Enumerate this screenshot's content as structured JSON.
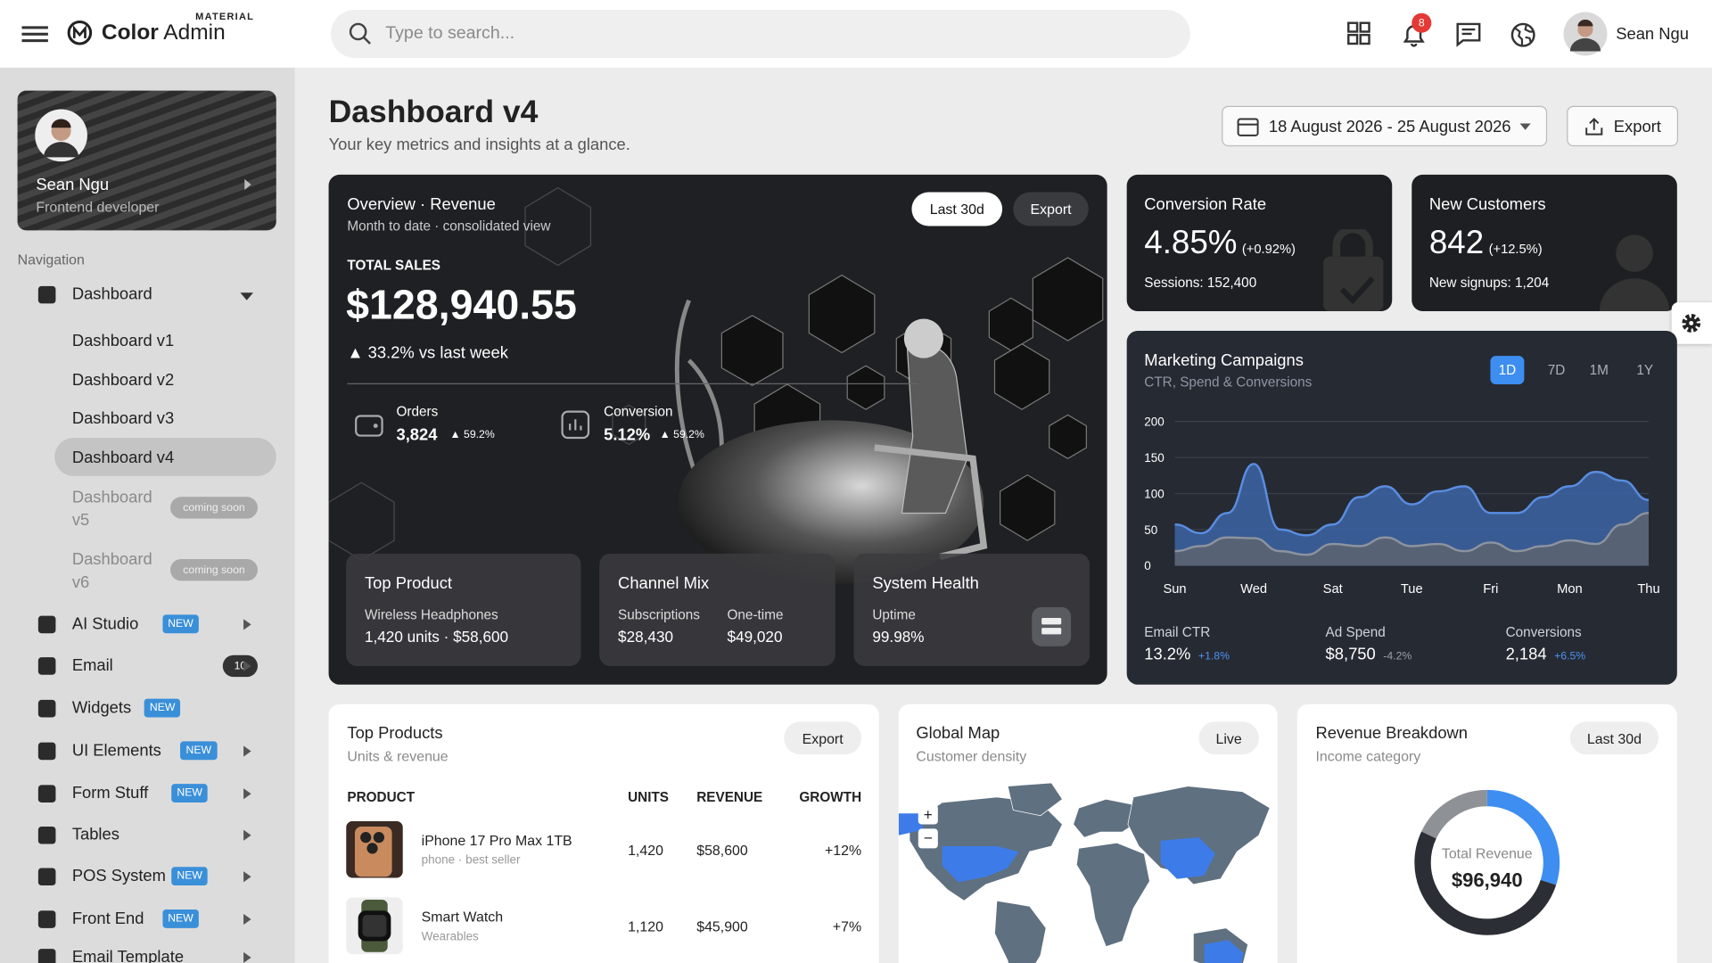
{
  "header": {
    "brand_tag": "MATERIAL",
    "brand": "Color",
    "brand_suffix": "Admin",
    "search_placeholder": "Type to search...",
    "notifications": "8",
    "user": "Sean Ngu"
  },
  "sidebar": {
    "profile": {
      "name": "Sean Ngu",
      "role": "Frontend developer"
    },
    "nav_label": "Navigation",
    "menu": [
      {
        "label": "Dashboard",
        "children": [
          {
            "label": "Dashboard v1"
          },
          {
            "label": "Dashboard v2"
          },
          {
            "label": "Dashboard v3"
          },
          {
            "label": "Dashboard v4"
          },
          {
            "label": "Dashboard v5",
            "badge": "coming soon"
          },
          {
            "label": "Dashboard v6",
            "badge": "coming soon"
          }
        ]
      },
      {
        "label": "AI Studio",
        "badge": "NEW"
      },
      {
        "label": "Email",
        "badge": "10"
      },
      {
        "label": "Widgets",
        "badge": "NEW"
      },
      {
        "label": "UI Elements",
        "badge": "NEW"
      },
      {
        "label": "Form Stuff",
        "badge": "NEW"
      },
      {
        "label": "Tables"
      },
      {
        "label": "POS System",
        "badge": "NEW"
      },
      {
        "label": "Front End",
        "badge": "NEW"
      },
      {
        "label": "Email Template"
      }
    ]
  },
  "page": {
    "title": "Dashboard v4",
    "subtitle": "Your key metrics and insights at a glance.",
    "date_range": "18 August 2026 - 25 August 2026",
    "export": "Export"
  },
  "overview": {
    "title": "Overview · Revenue",
    "subtitle": "Month to date · consolidated view",
    "buttons": [
      "Last 30d",
      "Export"
    ],
    "total_label": "TOTAL SALES",
    "total": "$128,940.55",
    "change": "33.2% vs last week",
    "stats": [
      {
        "label": "Orders",
        "value": "3,824",
        "change": "59.2%"
      },
      {
        "label": "Conversion",
        "value": "5.12%",
        "change": "59.2%"
      }
    ],
    "tiles": [
      {
        "title": "Top Product",
        "line1": "Wireless Headphones",
        "line2": "1,420 units · $58,600"
      },
      {
        "title": "Channel Mix",
        "items": [
          {
            "label": "Subscriptions",
            "value": "$28,430"
          },
          {
            "label": "One-time",
            "value": "$49,020"
          }
        ]
      },
      {
        "title": "System Health",
        "label": "Uptime",
        "value": "99.98%"
      }
    ]
  },
  "conversion": {
    "title": "Conversion Rate",
    "value": "4.85%",
    "change": "(+0.92%)",
    "detail": "Sessions: 152,400"
  },
  "customers": {
    "title": "New Customers",
    "value": "842",
    "change": "(+12.5%)",
    "detail": "New signups: 1,204"
  },
  "marketing": {
    "title": "Marketing Campaigns",
    "subtitle": "CTR, Spend & Conversions",
    "tabs": [
      "1D",
      "7D",
      "1M",
      "1Y"
    ],
    "chart": {
      "type": "area",
      "categories": [
        "Sun",
        null,
        null,
        "Wed",
        null,
        null,
        "Sat",
        null,
        null,
        "Tue",
        null,
        null,
        "Fri",
        null,
        null,
        "Mon",
        null,
        null,
        "Thu"
      ],
      "series": [
        {
          "color": "#3d64a6",
          "values": [
            57,
            45,
            73,
            141,
            50,
            42,
            57,
            95,
            110,
            85,
            103,
            110,
            73,
            73,
            95,
            110,
            130,
            118,
            91
          ]
        },
        {
          "color": "#5b6370",
          "values": [
            20,
            27,
            39,
            38,
            20,
            15,
            30,
            27,
            39,
            27,
            30,
            20,
            32,
            20,
            27,
            35,
            30,
            57,
            73
          ]
        }
      ],
      "ylim": [
        0,
        200
      ],
      "yticks": [
        0,
        50,
        100,
        150,
        200
      ],
      "grid": true
    },
    "metrics": [
      {
        "label": "Email CTR",
        "value": "13.2%",
        "change": "+1.8%"
      },
      {
        "label": "Ad Spend",
        "value": "$8,750",
        "change": "-4.2%"
      },
      {
        "label": "Conversions",
        "value": "2,184",
        "change": "+6.5%"
      }
    ]
  },
  "top_products": {
    "title": "Top Products",
    "subtitle": "Units & revenue",
    "button": "Export",
    "columns": [
      "PRODUCT",
      "UNITS",
      "REVENUE",
      "GROWTH"
    ],
    "rows": [
      {
        "name": "iPhone 17 Pro Max 1TB",
        "sub": "phone · best seller",
        "units": "1,420",
        "revenue": "$58,600",
        "growth": "+12%"
      },
      {
        "name": "Smart Watch",
        "sub": "Wearables",
        "units": "1,120",
        "revenue": "$45,900",
        "growth": "+7%"
      }
    ]
  },
  "map": {
    "title": "Global Map",
    "subtitle": "Customer density",
    "button": "Live"
  },
  "revenue": {
    "title": "Revenue Breakdown",
    "subtitle": "Income category",
    "button": "Last 30d",
    "center_label": "Total Revenue",
    "center_value": "$96,940",
    "chart": {
      "type": "donut",
      "values": [
        30,
        52,
        18
      ],
      "colors": [
        "#3d8ef0",
        "#2b2e35",
        "#8e9196"
      ]
    }
  }
}
